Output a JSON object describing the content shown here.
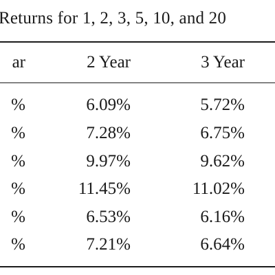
{
  "caption": "Returns for 1, 2, 3, 5, 10, and 20",
  "table": {
    "headers": [
      "ar",
      "2 Year",
      "3 Year"
    ],
    "rows": [
      [
        "%",
        "6.09%",
        "5.72%"
      ],
      [
        "%",
        "7.28%",
        "6.75%"
      ],
      [
        "%",
        "9.97%",
        "9.62%"
      ],
      [
        "%",
        "11.45%",
        "11.02%"
      ],
      [
        "%",
        "6.53%",
        "6.16%"
      ],
      [
        "%",
        "7.21%",
        "6.64%"
      ]
    ]
  }
}
